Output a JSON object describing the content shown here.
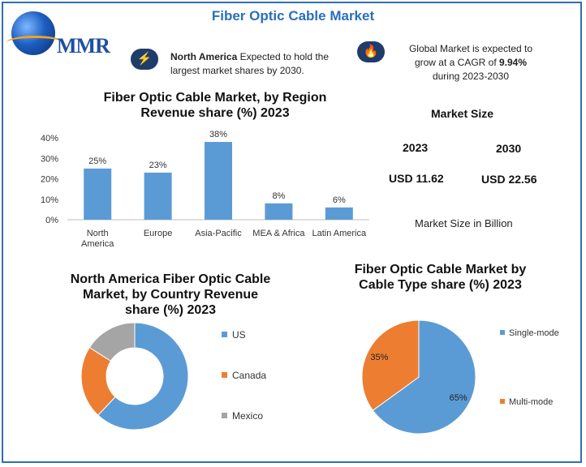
{
  "page_title": "Fiber Optic Cable Market",
  "logo_text": "MMR",
  "info": {
    "na_bold": "North America",
    "na_line1": "Expected to hold the",
    "na_line2": "largest market shares by 2030.",
    "global_line1": "Global Market is expected to",
    "global_line2a": "grow at a CAGR of ",
    "global_cagr": "9.94%",
    "global_line3": "during 2023-2030"
  },
  "colors": {
    "title": "#2a6ebd",
    "blue": "#5b9bd5",
    "orange": "#ed7d31",
    "gray": "#a5a5a5",
    "badge": "#1f3c6b"
  },
  "icons": {
    "na_badge": "lightning-icon",
    "global_badge": "flame-icon"
  },
  "market_size": {
    "heading": "Market Size",
    "year1": "2023",
    "year2": "2030",
    "value1": "USD 11.62",
    "value2": "USD 22.56",
    "note": "Market Size in Billion"
  },
  "chart_data": [
    {
      "type": "bar",
      "title_line1": "Fiber Optic Cable Market, by Region",
      "title_line2": "Revenue share (%) 2023",
      "categories": [
        "North America",
        "Europe",
        "Asia-Pacific",
        "MEA & Africa",
        "Latin America"
      ],
      "category_lines": [
        [
          "North",
          "America"
        ],
        [
          "Europe"
        ],
        [
          "Asia-Pacific"
        ],
        [
          "MEA & Africa"
        ],
        [
          "Latin America"
        ]
      ],
      "values": [
        25,
        23,
        38,
        8,
        6
      ],
      "data_labels": [
        "25%",
        "23%",
        "38%",
        "8%",
        "6%"
      ],
      "yticks": [
        "0%",
        "10%",
        "20%",
        "30%",
        "40%"
      ],
      "ylim": [
        0,
        40
      ],
      "color": "#5b9bd5"
    },
    {
      "type": "pie",
      "variant": "donut",
      "title_line1": "North America Fiber Optic Cable",
      "title_line2": "Market, by Country Revenue",
      "title_line3": "share (%) 2023",
      "labels": [
        "US",
        "Canada",
        "Mexico"
      ],
      "values": [
        62,
        22,
        16
      ],
      "colors": [
        "#5b9bd5",
        "#ed7d31",
        "#a5a5a5"
      ],
      "legend_position": "right"
    },
    {
      "type": "pie",
      "title_line1": "Fiber Optic Cable Market by",
      "title_line2": "Cable Type share (%) 2023",
      "labels": [
        "Single-mode",
        "Multi-mode"
      ],
      "values": [
        65,
        35
      ],
      "data_labels": [
        "65%",
        "35%"
      ],
      "colors": [
        "#5b9bd5",
        "#ed7d31"
      ],
      "legend_position": "right"
    }
  ]
}
